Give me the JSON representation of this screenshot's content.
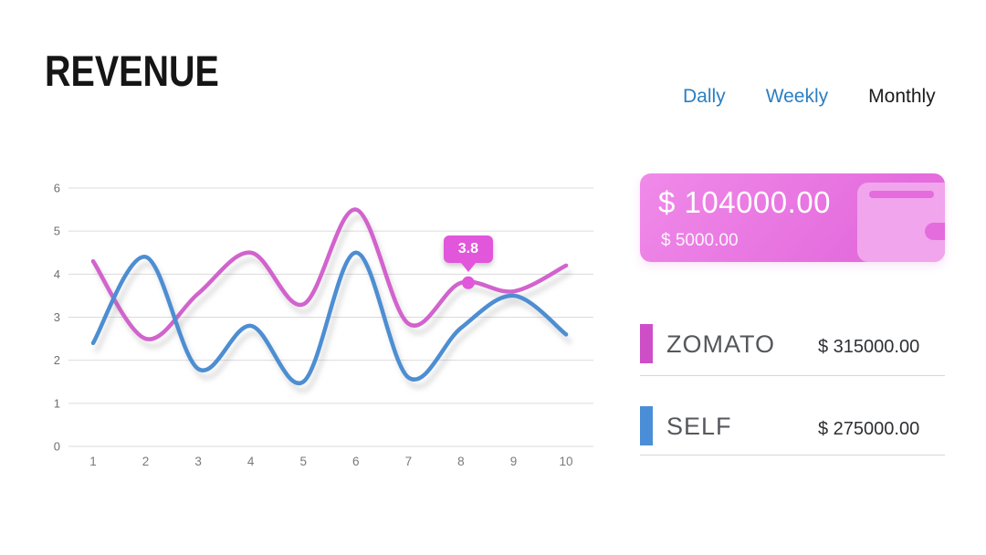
{
  "title": "REVENUE",
  "tabs": [
    {
      "label": "Dally",
      "color": "#2b7fc3",
      "highlighted": true
    },
    {
      "label": "Weekly",
      "color": "#2b7fc3",
      "highlighted": true
    },
    {
      "label": "Monthly",
      "color": "#1c1c1e",
      "highlighted": false
    }
  ],
  "summary_card": {
    "primary_amount": "$ 104000.00",
    "secondary_amount": "$ 5000.00",
    "background": "#e46cdd",
    "icon": "wallet-icon"
  },
  "legend": [
    {
      "label": "ZOMATO",
      "amount": "$ 315000.00",
      "color": "#ce4ec8"
    },
    {
      "label": "SELF",
      "amount": "$ 275000.00",
      "color": "#4a8ed8"
    }
  ],
  "chart_data": {
    "type": "line",
    "x": [
      1,
      2,
      3,
      4,
      5,
      6,
      7,
      8,
      9,
      10
    ],
    "series": [
      {
        "name": "ZOMATO",
        "color": "#d263cd",
        "values": [
          4.3,
          2.5,
          3.55,
          4.5,
          3.3,
          5.5,
          2.85,
          3.8,
          3.6,
          4.2
        ]
      },
      {
        "name": "SELF",
        "color": "#4d8ed2",
        "values": [
          2.4,
          4.4,
          1.8,
          2.8,
          1.5,
          4.5,
          1.6,
          2.75,
          3.5,
          2.6
        ]
      }
    ],
    "ylim": [
      0,
      6
    ],
    "yticks": [
      0,
      1,
      2,
      3,
      4,
      5,
      6
    ],
    "grid": "horizontal",
    "legend_position": "right-panel",
    "annotation": {
      "series": "ZOMATO",
      "x": 8,
      "value": 3.8,
      "label": "3.8",
      "color": "#e156da"
    }
  }
}
